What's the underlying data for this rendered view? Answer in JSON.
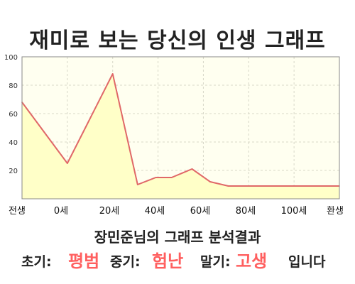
{
  "title": "재미로 보는 당신의 인생 그래프",
  "chart_data": {
    "type": "area",
    "y_ticks": [
      20,
      40,
      60,
      80,
      100
    ],
    "ylim": [
      0,
      100
    ],
    "x_tick_labels": [
      "전생",
      "0세",
      "20세",
      "40세",
      "60세",
      "80세",
      "100세",
      "환생"
    ],
    "series": [
      {
        "values": [
          {
            "x": -20,
            "y": 68
          },
          {
            "x": 0,
            "y": 25
          },
          {
            "x": 20,
            "y": 88
          },
          {
            "x": 31,
            "y": 10
          },
          {
            "x": 39,
            "y": 15
          },
          {
            "x": 46,
            "y": 15
          },
          {
            "x": 55,
            "y": 21
          },
          {
            "x": 63,
            "y": 12
          },
          {
            "x": 71,
            "y": 9
          },
          {
            "x": 100,
            "y": 9
          },
          {
            "x": 120,
            "y": 9
          }
        ]
      }
    ],
    "colors": {
      "line": "#e06868",
      "fill": "#ffffc8",
      "plot_bg": "#fffff0",
      "grid": "#d8d8c8"
    },
    "grid": true
  },
  "subtitle": "장민준님의 그래프 분석결과",
  "result": {
    "early_label": "초기:",
    "early_value": "평범",
    "mid_label": "중기:",
    "mid_value": "험난",
    "late_label": "말기:",
    "late_value": "고생",
    "suffix": "입니다"
  }
}
